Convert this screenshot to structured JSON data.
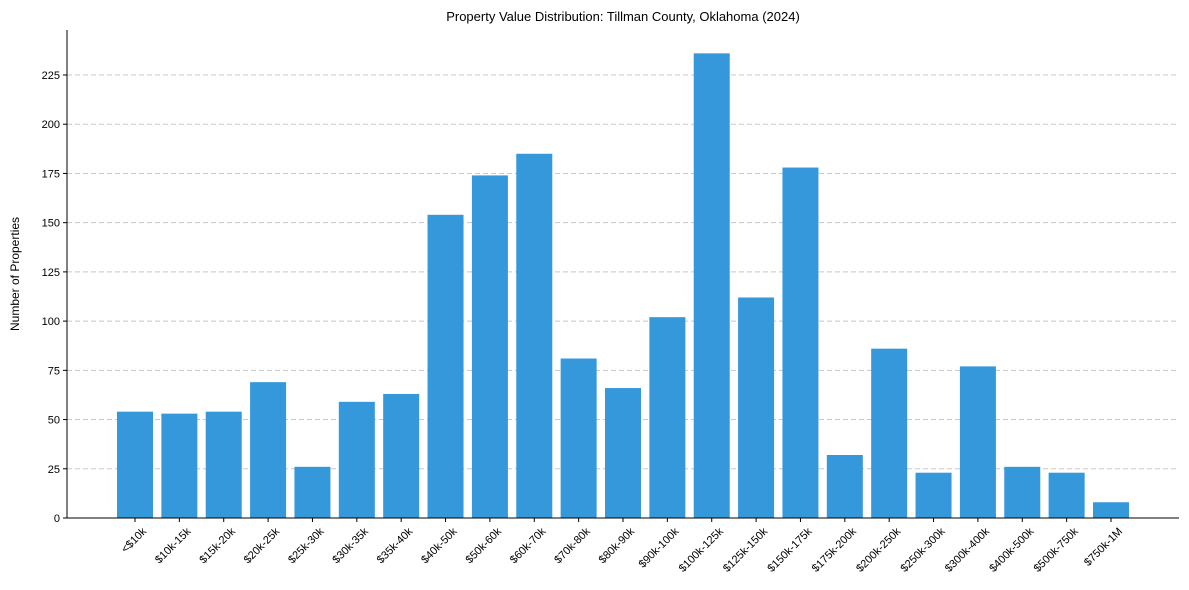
{
  "chart_data": {
    "type": "bar",
    "title": "Property Value Distribution: Tillman County, Oklahoma (2024)",
    "xlabel": "",
    "ylabel": "Number of Properties",
    "ylim": [
      0,
      248
    ],
    "yticks": [
      0,
      25,
      50,
      75,
      100,
      125,
      150,
      175,
      200,
      225
    ],
    "grid": "y-dashed",
    "bar_color": "#3498db",
    "categories": [
      "<$10k",
      "$10k-15k",
      "$15k-20k",
      "$20k-25k",
      "$25k-30k",
      "$30k-35k",
      "$35k-40k",
      "$40k-50k",
      "$50k-60k",
      "$60k-70k",
      "$70k-80k",
      "$80k-90k",
      "$90k-100k",
      "$100k-125k",
      "$125k-150k",
      "$150k-175k",
      "$175k-200k",
      "$200k-250k",
      "$250k-300k",
      "$300k-400k",
      "$400k-500k",
      "$500k-750k",
      "$750k-1M"
    ],
    "values": [
      54,
      53,
      54,
      69,
      26,
      59,
      63,
      154,
      174,
      185,
      81,
      66,
      102,
      236,
      112,
      178,
      32,
      86,
      23,
      77,
      26,
      23,
      8
    ]
  }
}
